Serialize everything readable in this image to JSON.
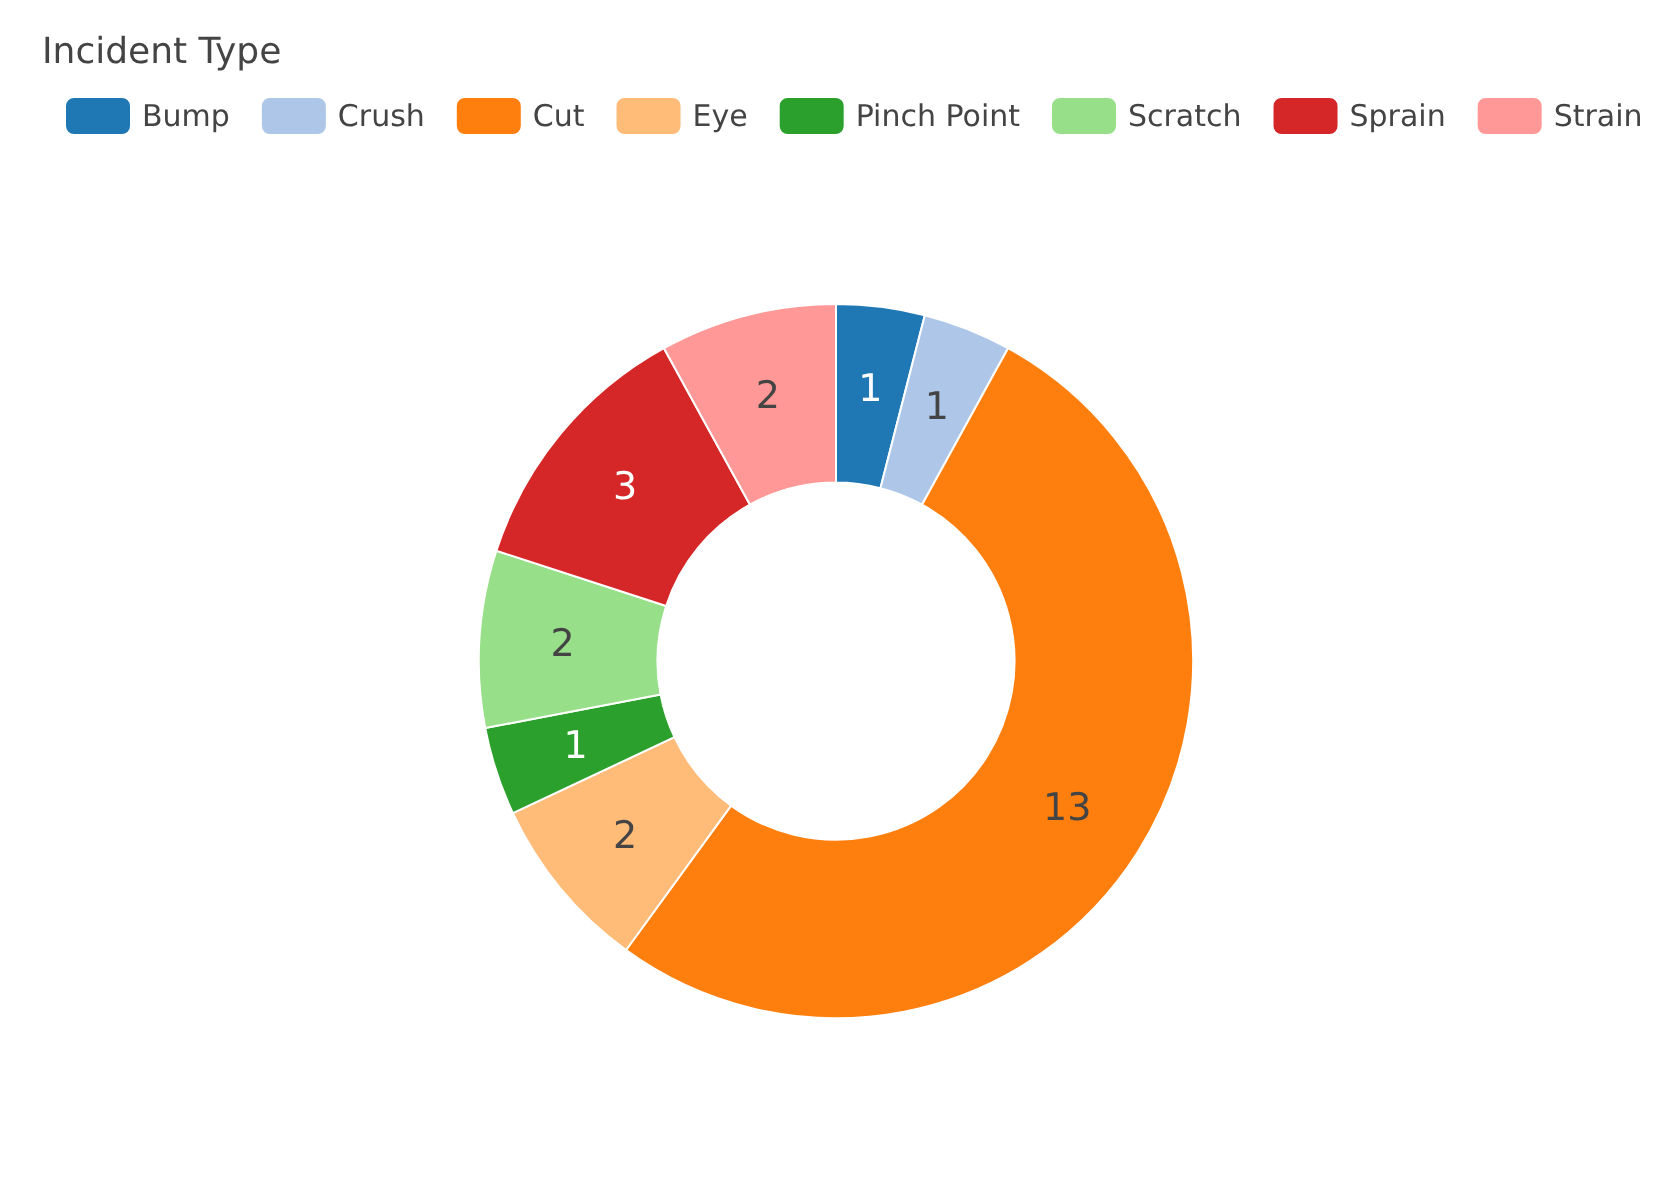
{
  "chart_data": {
    "type": "donut",
    "legend_title": "Incident Type",
    "categories": [
      "Bump",
      "Crush",
      "Cut",
      "Eye",
      "Pinch Point",
      "Scratch",
      "Sprain",
      "Strain"
    ],
    "values": [
      1,
      1,
      13,
      2,
      1,
      2,
      3,
      2
    ],
    "colors": [
      "#1f77b4",
      "#aec7e8",
      "#ff7f0e",
      "#ffbb78",
      "#2ca02c",
      "#98df8a",
      "#d62728",
      "#ff9896"
    ],
    "data_labels": true,
    "legend": "top left"
  }
}
